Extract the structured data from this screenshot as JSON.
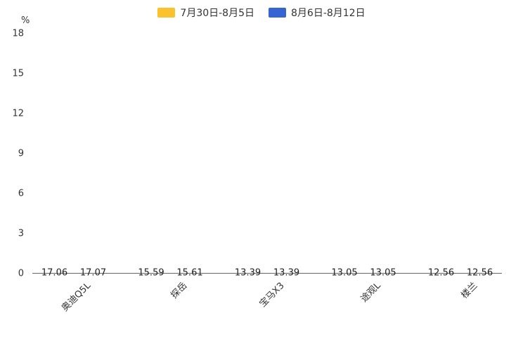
{
  "chart_data": {
    "type": "bar",
    "title": "",
    "unit": "%",
    "categories": [
      "奥迪Q5L",
      "探岳",
      "宝马X3",
      "途观L",
      "楼兰"
    ],
    "series": [
      {
        "name": "7月30日-8月5日",
        "color": "#FBC22D",
        "values": [
          17.06,
          15.59,
          13.39,
          13.05,
          12.56
        ]
      },
      {
        "name": "8月6日-8月12日",
        "color": "#3665D3",
        "values": [
          17.07,
          15.61,
          13.39,
          13.05,
          12.56
        ]
      }
    ],
    "ylim": [
      0,
      18
    ],
    "yticks": [
      0,
      3,
      6,
      9,
      12,
      15,
      18
    ],
    "grid": false,
    "legend_position": "top",
    "value_label_decimals": 2
  }
}
